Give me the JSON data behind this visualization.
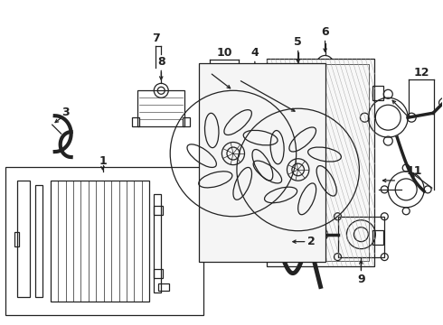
{
  "bg_color": "#ffffff",
  "lc": "#222222",
  "lw": 0.9,
  "fig_w": 4.9,
  "fig_h": 3.6,
  "dpi": 100
}
